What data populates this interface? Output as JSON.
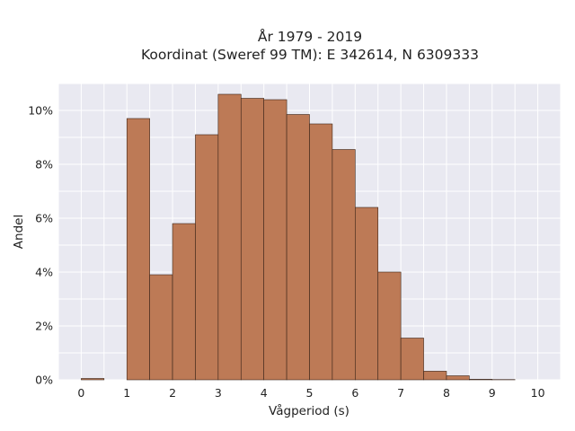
{
  "chart_data": {
    "type": "bar",
    "title_lines": [
      "År 1979 - 2019",
      "Koordinat (Sweref 99 TM): E 342614, N 6309333"
    ],
    "xlabel": "Vågperiod (s)",
    "ylabel": "Andel",
    "bin_width": 0.5,
    "bins": [
      {
        "x": 0.0,
        "value": 0.05
      },
      {
        "x": 0.5,
        "value": 0.0
      },
      {
        "x": 1.0,
        "value": 9.7
      },
      {
        "x": 1.5,
        "value": 3.9
      },
      {
        "x": 2.0,
        "value": 5.8
      },
      {
        "x": 2.5,
        "value": 9.1
      },
      {
        "x": 3.0,
        "value": 10.6
      },
      {
        "x": 3.5,
        "value": 10.45
      },
      {
        "x": 4.0,
        "value": 10.4
      },
      {
        "x": 4.5,
        "value": 9.85
      },
      {
        "x": 5.0,
        "value": 9.5
      },
      {
        "x": 5.5,
        "value": 8.55
      },
      {
        "x": 6.0,
        "value": 6.4
      },
      {
        "x": 6.5,
        "value": 4.0
      },
      {
        "x": 7.0,
        "value": 1.55
      },
      {
        "x": 7.5,
        "value": 0.32
      },
      {
        "x": 8.0,
        "value": 0.15
      },
      {
        "x": 8.5,
        "value": 0.02
      },
      {
        "x": 9.0,
        "value": 0.01
      },
      {
        "x": 9.5,
        "value": 0.0
      }
    ],
    "xlim": [
      -0.5,
      10.5
    ],
    "ylim": [
      0,
      11
    ],
    "xticks": [
      0,
      1,
      2,
      3,
      4,
      5,
      6,
      7,
      8,
      9,
      10
    ],
    "yticks": [
      0,
      2,
      4,
      6,
      8,
      10
    ],
    "ytick_suffix": "%",
    "grid": true,
    "colors": {
      "bar": "#bd7a56",
      "bar_edge": "#3a2418",
      "plot_bg": "#e9e9f1",
      "grid": "#ffffff"
    }
  }
}
